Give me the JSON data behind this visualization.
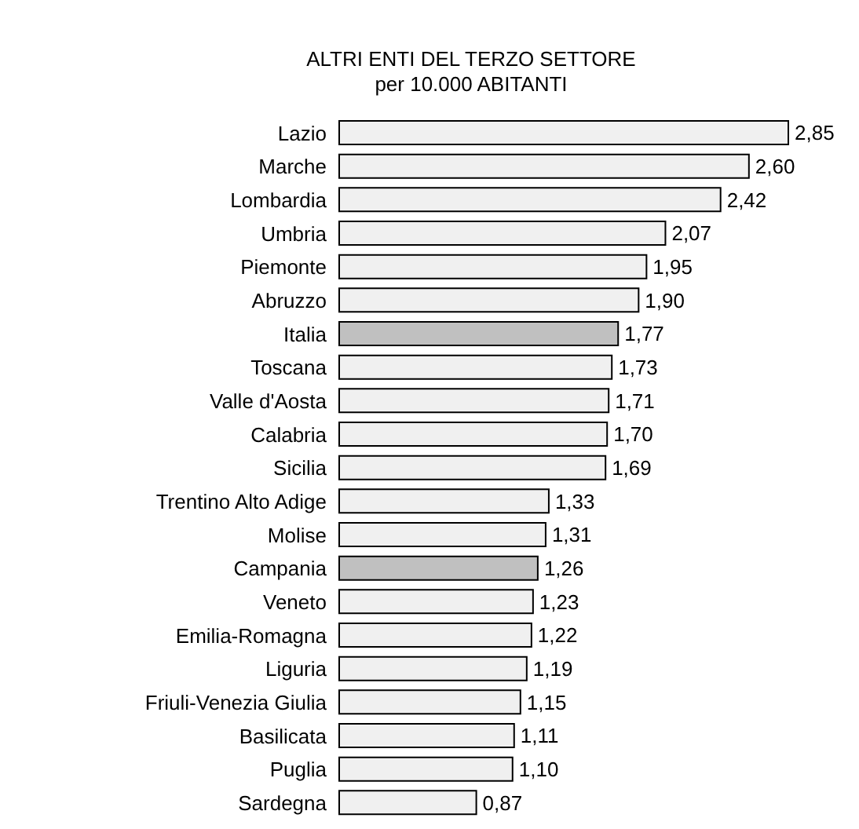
{
  "chart_data": {
    "type": "bar",
    "orientation": "horizontal",
    "title": "ALTRI ENTI DEL TERZO SETTORE",
    "subtitle": "per 10.000 ABITANTI",
    "categories": [
      "Lazio",
      "Marche",
      "Lombardia",
      "Umbria",
      "Piemonte",
      "Abruzzo",
      "Italia",
      "Toscana",
      "Valle d'Aosta",
      "Calabria",
      "Sicilia",
      "Trentino Alto Adige",
      "Molise",
      "Campania",
      "Veneto",
      "Emilia-Romagna",
      "Liguria",
      "Friuli-Venezia Giulia",
      "Basilicata",
      "Puglia",
      "Sardegna"
    ],
    "values": [
      2.85,
      2.6,
      2.42,
      2.07,
      1.95,
      1.9,
      1.77,
      1.73,
      1.71,
      1.7,
      1.69,
      1.33,
      1.31,
      1.26,
      1.23,
      1.22,
      1.19,
      1.15,
      1.11,
      1.1,
      0.87
    ],
    "value_labels": [
      "2,85",
      "2,60",
      "2,42",
      "2,07",
      "1,95",
      "1,90",
      "1,77",
      "1,73",
      "1,71",
      "1,70",
      "1,69",
      "1,33",
      "1,31",
      "1,26",
      "1,23",
      "1,22",
      "1,19",
      "1,15",
      "1,11",
      "1,10",
      "0,87"
    ],
    "colors": [
      "#f0f0f0",
      "#f0f0f0",
      "#f0f0f0",
      "#f0f0f0",
      "#f0f0f0",
      "#f0f0f0",
      "#c0c0c0",
      "#f0f0f0",
      "#f0f0f0",
      "#f0f0f0",
      "#f0f0f0",
      "#f0f0f0",
      "#f0f0f0",
      "#c0c0c0",
      "#f0f0f0",
      "#f0f0f0",
      "#f0f0f0",
      "#f0f0f0",
      "#f0f0f0",
      "#f0f0f0",
      "#f0f0f0"
    ],
    "grid": false,
    "legend": false
  }
}
